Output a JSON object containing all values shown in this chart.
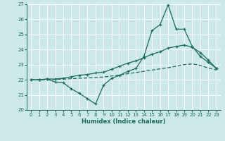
{
  "xlabel": "Humidex (Indice chaleur)",
  "xlim": [
    -0.5,
    23.5
  ],
  "ylim": [
    20,
    27
  ],
  "yticks": [
    20,
    21,
    22,
    23,
    24,
    25,
    26,
    27
  ],
  "xticks": [
    0,
    1,
    2,
    3,
    4,
    5,
    6,
    7,
    8,
    9,
    10,
    11,
    12,
    13,
    14,
    15,
    16,
    17,
    18,
    19,
    20,
    21,
    22,
    23
  ],
  "bg_color": "#cce8e8",
  "line_color": "#1a6b5a",
  "grid_color": "#ffffff",
  "line1_x": [
    0,
    1,
    2,
    3,
    4,
    5,
    6,
    7,
    8,
    9,
    10,
    11,
    12,
    13,
    14,
    15,
    16,
    17,
    18,
    19,
    20,
    21,
    22,
    23
  ],
  "line1_y": [
    22.0,
    22.0,
    22.05,
    21.85,
    21.8,
    21.4,
    21.1,
    20.75,
    20.4,
    21.65,
    22.1,
    22.3,
    22.55,
    22.75,
    23.55,
    25.25,
    25.65,
    26.95,
    25.35,
    25.35,
    24.2,
    23.55,
    23.15,
    22.75
  ],
  "line2_x": [
    0,
    1,
    2,
    3,
    4,
    5,
    6,
    7,
    8,
    9,
    10,
    11,
    12,
    13,
    14,
    15,
    16,
    17,
    18,
    19,
    20,
    21,
    22,
    23
  ],
  "line2_y": [
    22.0,
    22.0,
    22.05,
    22.05,
    22.1,
    22.2,
    22.3,
    22.35,
    22.45,
    22.5,
    22.7,
    22.9,
    23.1,
    23.25,
    23.45,
    23.7,
    23.85,
    24.1,
    24.2,
    24.3,
    24.15,
    23.8,
    23.3,
    22.75
  ],
  "line3_x": [
    0,
    1,
    2,
    3,
    4,
    5,
    6,
    7,
    8,
    9,
    10,
    11,
    12,
    13,
    14,
    15,
    16,
    17,
    18,
    19,
    20,
    21,
    22,
    23
  ],
  "line3_y": [
    22.0,
    22.0,
    22.0,
    22.02,
    22.04,
    22.07,
    22.1,
    22.12,
    22.15,
    22.18,
    22.25,
    22.32,
    22.4,
    22.48,
    22.56,
    22.64,
    22.72,
    22.8,
    22.9,
    23.0,
    23.05,
    22.95,
    22.78,
    22.65
  ]
}
